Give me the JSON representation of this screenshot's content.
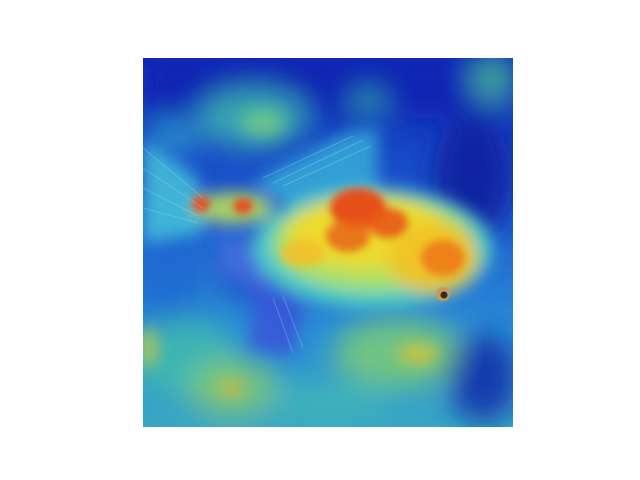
{
  "image": {
    "kind": "photo-with-heatmap-overlay",
    "subject_icon": "goldfish-icon",
    "colormap": "jet",
    "colors": {
      "background": "#ffffff",
      "heat_low": "#0a1fb0",
      "heat_mid_low": "#1f78d8",
      "heat_mid": "#35c6c0",
      "heat_mid_high": "#c9e24a",
      "heat_high": "#f6d21e",
      "heat_peak": "#e53a12"
    }
  }
}
